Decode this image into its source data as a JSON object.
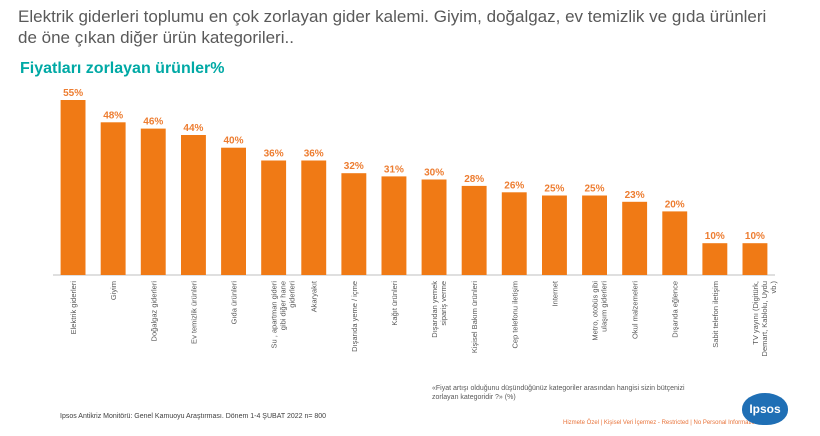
{
  "headline": "Elektrik giderleri toplumu en çok zorlayan gider kalemi. Giyim, doğalgaz, ev temizlik ve gıda ürünleri de öne çıkan diğer ürün kategorileri..",
  "chart_data": {
    "type": "bar",
    "title": "Fiyatları zorlayan ürünler%",
    "categories": [
      "Elektrik giderleri",
      "Giyim",
      "Doğalgaz giderleri",
      "Ev temizlik ürünleri",
      "Gıda ürünleri",
      "Su , apartman gideri gibi diğer hane giderleri",
      "Akaryakıt",
      "Dışarıda yeme / içme",
      "Kağıt ürünleri",
      "Dışarıdan yemek sipariş verme",
      "Kişisel Bakım ürünleri",
      "Cep telefonu iletişim",
      "Internet",
      "Metro, otobüs gibi ulaşım giderleri",
      "Okul malzemeleri",
      "Dışarıda eğlence",
      "Sabit telefon iletişim",
      "TV yayını (Digitürk, Demart, Kablolu, Uydu vb.)"
    ],
    "values": [
      55,
      48,
      46,
      44,
      40,
      36,
      36,
      32,
      31,
      30,
      28,
      26,
      25,
      25,
      23,
      20,
      10,
      10
    ],
    "value_labels": [
      "55%",
      "48%",
      "46%",
      "44%",
      "40%",
      "36%",
      "36%",
      "32%",
      "31%",
      "30%",
      "28%",
      "26%",
      "25%",
      "25%",
      "23%",
      "20%",
      "10%",
      "10%"
    ],
    "ylim": [
      0,
      55
    ],
    "bar_color": "#f07a15",
    "label_color": "#ed7d31",
    "grid": false,
    "legend": "none"
  },
  "footnote": "«Fiyat artışı olduğunu düşündüğünüz kategoriler arasından hangisi sizin bütçenizi zorlayan kategoridir ?» (%)",
  "source": "Ipsos Antikriz Monitörü: Genel Kamuoyu Araştırması. Dönem 1-4 ŞUBAT 2022 n= 800",
  "classification": "Hizmete Özel | Kişisel Veri İçermez - Restricted | No Personal Information",
  "logo_text": "Ipsos",
  "colors": {
    "subtitle": "#00a9a5",
    "logo": "#1f6fb5"
  }
}
